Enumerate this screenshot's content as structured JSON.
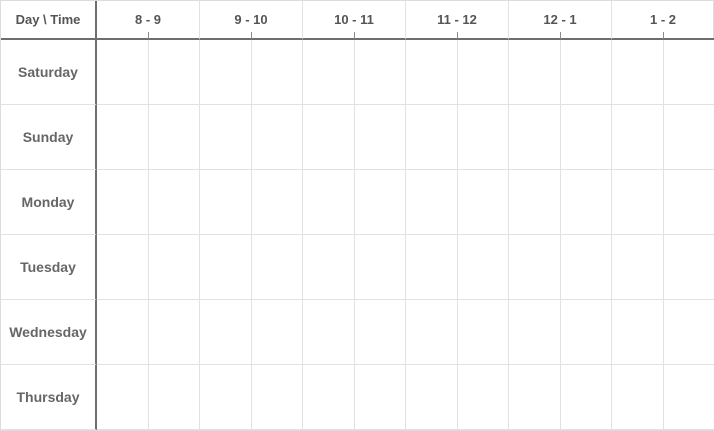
{
  "table": {
    "corner_label": "Day \\ Time",
    "time_slots": [
      "8 - 9",
      "9 - 10",
      "10 - 11",
      "11 - 12",
      "12 - 1",
      "1 - 2"
    ],
    "days": [
      "Saturday",
      "Sunday",
      "Monday",
      "Tuesday",
      "Wednesday",
      "Thursday"
    ],
    "half_slots_per_hour": 2
  },
  "colors": {
    "grid_line": "#e2e2e2",
    "header_line": "#6e6e6e",
    "header_text": "#555555",
    "day_text": "#666666"
  }
}
